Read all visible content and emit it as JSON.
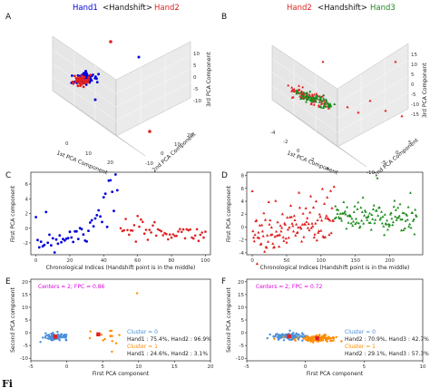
{
  "caption_fragment": "Fi",
  "colors": {
    "blue": "#0000dd",
    "red": "#e02020",
    "green": "#1a8a1a",
    "orange": "#ff8c00",
    "magenta": "#dd00dd",
    "cluster0": "#4a90d9"
  },
  "titles": {
    "A": {
      "left": "Hand1",
      "mid": "<Handshift>",
      "right": "Hand2"
    },
    "B": {
      "left": "Hand2",
      "mid": "<Handshift>",
      "right": "Hand3"
    }
  },
  "chart_data": [
    {
      "panel": "A",
      "type": "scatter",
      "axes": {
        "x": "1st PCA Component",
        "y": "2nd PCA Component",
        "z": "3rd PCA Component"
      },
      "x_ticks": [
        "0",
        "10",
        "20"
      ],
      "y_ticks": [
        "-10",
        "0",
        "10",
        "20"
      ],
      "z_ticks": [
        "10",
        "5",
        "0",
        "-5",
        "-10"
      ]
    },
    {
      "panel": "B",
      "type": "scatter",
      "axes": {
        "x": "1st PCA Component",
        "y": "2nd PCA Component",
        "z": "3rd PCA Component"
      },
      "x_ticks": [
        "-4",
        "-2",
        "0",
        "2",
        "4"
      ],
      "y_ticks": [
        "-10",
        "-5",
        "0",
        "5"
      ],
      "z_ticks": [
        "15",
        "10",
        "5",
        "0",
        "-5",
        "-10",
        "-15"
      ]
    },
    {
      "panel": "C",
      "type": "scatter",
      "xlabel": "Chronological Indices (Handshift point is in the middle)",
      "ylabel": "First PCA component",
      "xlim": [
        -3,
        103
      ],
      "ylim": [
        -3.6,
        7.6
      ],
      "x_ticks": [
        0,
        20,
        40,
        60,
        80,
        100
      ],
      "y_ticks": [
        -2,
        0,
        2,
        4,
        6
      ]
    },
    {
      "panel": "D",
      "type": "scatter",
      "xlabel": "Chronological Indices (Handshift point is in the middle)",
      "ylabel": "First PCA component",
      "xlim": [
        -8,
        248
      ],
      "ylim": [
        -4.3,
        8.5
      ],
      "x_ticks": [
        0,
        50,
        100,
        150,
        200
      ],
      "y_ticks": [
        -4,
        -2,
        0,
        2,
        4,
        6,
        8
      ]
    },
    {
      "panel": "E",
      "type": "scatter",
      "xlabel": "First PCA component",
      "ylabel": "Second PCA component",
      "xlim": [
        -5,
        20
      ],
      "ylim": [
        -11,
        21
      ],
      "x_ticks": [
        -5,
        0,
        5,
        10,
        15,
        20
      ],
      "y_ticks": [
        -10,
        -5,
        0,
        5,
        10,
        15,
        20
      ],
      "annotation": "Centers = 2; FPC = 0.86",
      "legend": [
        {
          "label": "Cluster = 0",
          "info": "Hand1 : 75.4%, Hand2 : 96.9%"
        },
        {
          "label": "Cluster = 1",
          "info": "Hand1 : 24.6%, Hand2 : 3.1%"
        }
      ]
    },
    {
      "panel": "F",
      "type": "scatter",
      "xlabel": "First PCA component",
      "ylabel": "Second PCA component",
      "xlim": [
        -5,
        10
      ],
      "ylim": [
        -11,
        21
      ],
      "x_ticks": [
        -5,
        0,
        5,
        10
      ],
      "y_ticks": [
        -10,
        -5,
        0,
        5,
        10,
        15,
        20
      ],
      "annotation": "Centers = 2; FPC = 0.72",
      "legend": [
        {
          "label": "Cluster = 0",
          "info": "Hand2 : 70.9%, Hand3 : 42.7%"
        },
        {
          "label": "Cluster = 1",
          "info": "Hand2 : 29.1%, Hand3 : 57.3%"
        }
      ]
    }
  ]
}
